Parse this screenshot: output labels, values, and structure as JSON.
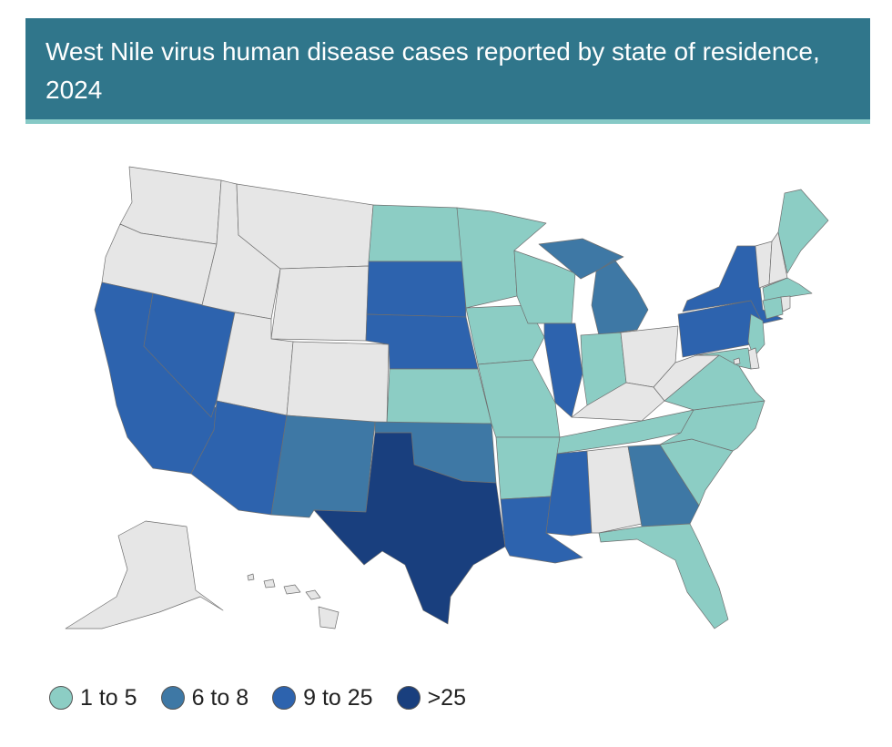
{
  "title": "West Nile virus human disease cases reported by state of residence, 2024",
  "colors": {
    "none": "#e6e6e6",
    "b1": "#8ccdc4",
    "b2": "#3e78a5",
    "b3": "#2d63ae",
    "b4": "#193f7e",
    "header": "#30768b"
  },
  "legend": [
    {
      "label": "1 to 5",
      "key": "b1"
    },
    {
      "label": "6 to 8",
      "key": "b2"
    },
    {
      "label": "9 to 25",
      "key": "b3"
    },
    {
      "label": ">25",
      "key": "b4"
    }
  ],
  "states": {
    "WA": "none",
    "OR": "none",
    "CA": "b3",
    "NV": "b3",
    "ID": "none",
    "MT": "none",
    "WY": "none",
    "UT": "none",
    "CO": "none",
    "AZ": "b3",
    "NM": "b2",
    "ND": "b1",
    "SD": "b3",
    "NE": "b3",
    "KS": "b1",
    "OK": "b2",
    "TX": "b4",
    "MN": "b1",
    "IA": "b1",
    "MO": "b1",
    "AR": "b1",
    "LA": "b3",
    "WI": "b1",
    "IL": "b3",
    "MI": "b2",
    "IN": "b1",
    "OH": "none",
    "KY": "none",
    "TN": "b1",
    "MS": "b3",
    "AL": "none",
    "GA": "b2",
    "FL": "b1",
    "SC": "b1",
    "NC": "b1",
    "VA": "b1",
    "WV": "none",
    "PA": "b3",
    "NY": "b3",
    "VT": "none",
    "NH": "none",
    "ME": "b1",
    "MA": "b1",
    "RI": "none",
    "CT": "b1",
    "NJ": "b1",
    "DE": "none",
    "MD": "b1",
    "DC": "none",
    "AK": "none",
    "HI": "none"
  }
}
